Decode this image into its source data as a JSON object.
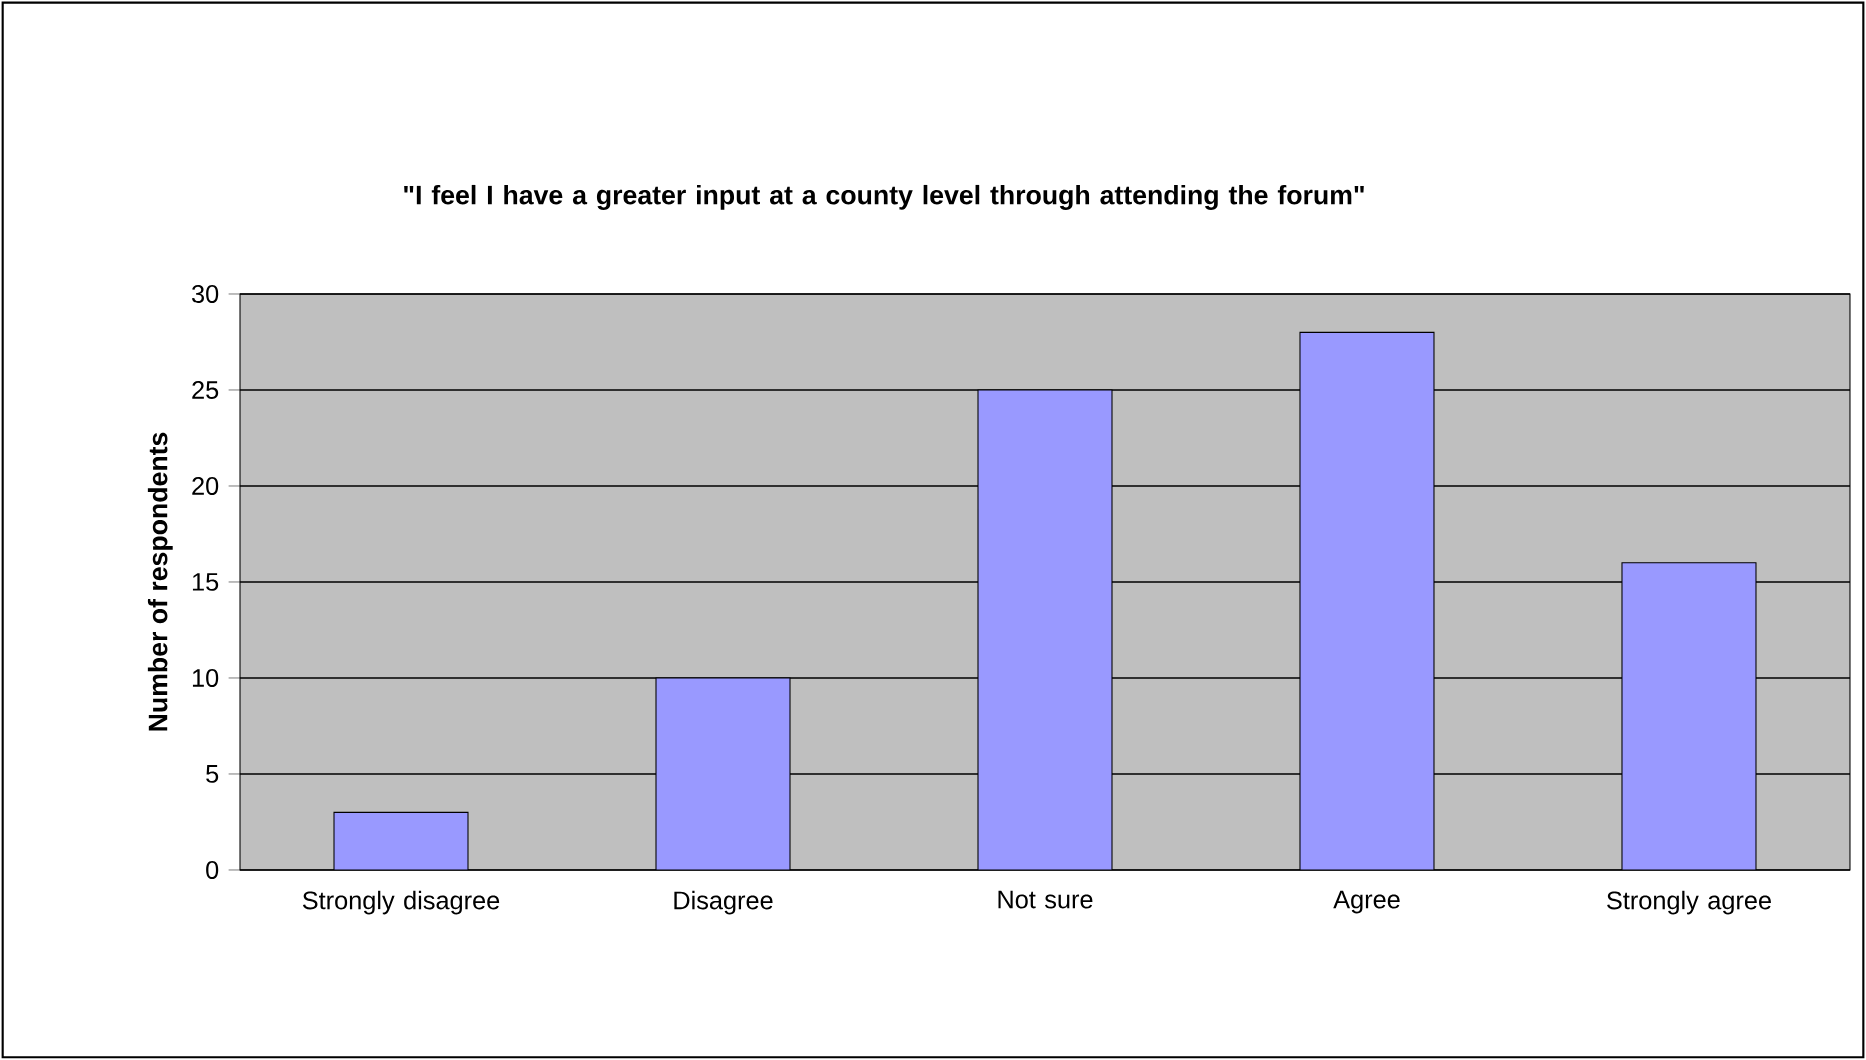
{
  "chart_data": {
    "type": "bar",
    "title": "\"I feel I have a greater input at a county level through attending the forum\"",
    "ylabel": "Number of respondents",
    "categories": [
      "Strongly disagree",
      "Disagree",
      "Not sure",
      "Agree",
      "Strongly agree"
    ],
    "values": [
      3,
      10,
      25,
      28,
      16
    ],
    "color": "#9999ff",
    "ylim": [
      0,
      30
    ],
    "yticks": [
      0,
      5,
      10,
      15,
      20,
      25,
      30
    ],
    "grid": "y"
  }
}
